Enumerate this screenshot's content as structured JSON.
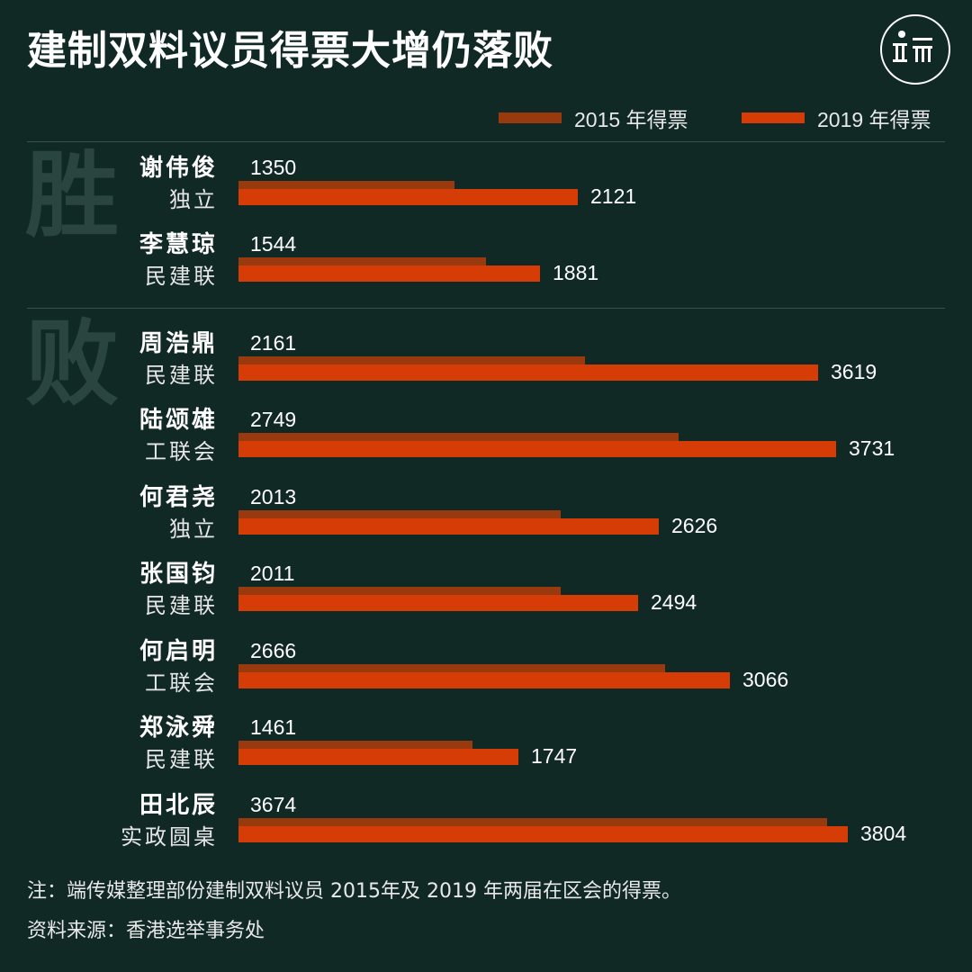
{
  "title": "建制双料议员得票大增仍落败",
  "logo_icon": "initium-logo-icon",
  "colors": {
    "background": "#112925",
    "bar_2015": "#983A0E",
    "bar_2019": "#D63C06",
    "watermark": "#2a443f"
  },
  "legend": {
    "label_2015": "2015 年得票",
    "label_2019": "2019 年得票"
  },
  "groups": {
    "win": "胜",
    "lose": "败"
  },
  "chart_data": {
    "type": "bar",
    "orientation": "horizontal",
    "categories": [
      "谢伟俊",
      "李慧琼",
      "周浩鼎",
      "陆颂雄",
      "何君尧",
      "张国钧",
      "何启明",
      "郑泳舜",
      "田北辰"
    ],
    "parties": [
      "独立",
      "民建联",
      "民建联",
      "工联会",
      "独立",
      "民建联",
      "工联会",
      "民建联",
      "实政圆桌"
    ],
    "group_of_category": [
      "胜",
      "胜",
      "败",
      "败",
      "败",
      "败",
      "败",
      "败",
      "败"
    ],
    "series": [
      {
        "name": "2015 年得票",
        "values": [
          1350,
          1544,
          2161,
          2749,
          2013,
          2011,
          2666,
          1461,
          3674
        ]
      },
      {
        "name": "2019 年得票",
        "values": [
          2121,
          1881,
          3619,
          3731,
          2626,
          2494,
          3066,
          1747,
          3804
        ]
      }
    ],
    "xlim": [
      0,
      3804
    ],
    "grid": false,
    "legend_position": "top-right"
  },
  "footer": {
    "note": "注：端传媒整理部份建制双料议员 2015年及 2019 年两届在区会的得票。",
    "source": "资料来源：香港选举事务处"
  }
}
